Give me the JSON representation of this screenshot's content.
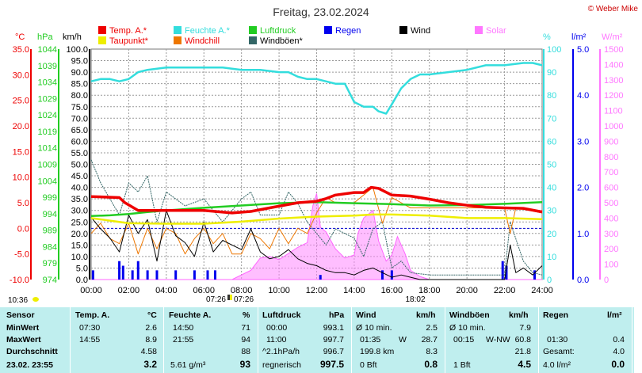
{
  "title": "Freitag, 23.02.2024",
  "copyright": "© Weber Mike",
  "legend": [
    {
      "label": "Temp. A.*",
      "color": "#ee0000"
    },
    {
      "label": "Feuchte A.*",
      "color": "#33dddd"
    },
    {
      "label": "Luftdruck",
      "color": "#22cc22"
    },
    {
      "label": "Regen",
      "color": "#0000ee"
    },
    {
      "label": "Wind",
      "color": "#000000"
    },
    {
      "label": "Solar",
      "color": "#ff77ff"
    },
    {
      "label": "Taupunkt*",
      "color": "#eeee00"
    },
    {
      "label": "Windchill",
      "color": "#ee7700"
    },
    {
      "label": "Windböen*",
      "color": "#336666"
    }
  ],
  "axis_units": {
    "temp": "°C",
    "hpa": "hPa",
    "kmh": "km/h",
    "pct": "%",
    "rain": "l/m²",
    "solar": "W/m²"
  },
  "sun_times": {
    "sunrise": "07:26",
    "sunset": "18:02",
    "now": "10:36"
  },
  "chart_data": {
    "type": "line",
    "x_unit": "hours",
    "xlim": [
      0,
      24
    ],
    "x_ticks": [
      "00:00",
      "02:00",
      "04:00",
      "06:00",
      "08:00",
      "10:00",
      "12:00",
      "14:00",
      "16:00",
      "18:00",
      "20:00",
      "22:00",
      "24:00"
    ],
    "axes": {
      "temp": {
        "range": [
          -10,
          35
        ],
        "ticks": [
          "35.0",
          "30.0",
          "25.0",
          "20.0",
          "15.0",
          "10.0",
          "5.0",
          "0.0",
          "-5.0",
          "-10.0"
        ]
      },
      "hpa": {
        "range": [
          974,
          1044
        ],
        "ticks": [
          "1044",
          "1039",
          "1034",
          "1029",
          "1024",
          "1019",
          "1014",
          "1009",
          "1004",
          "999",
          "994",
          "989",
          "984",
          "979",
          "974"
        ]
      },
      "kmh": {
        "range": [
          0,
          100
        ],
        "ticks": [
          "100.0",
          "95.0",
          "90.0",
          "85.0",
          "80.0",
          "75.0",
          "70.0",
          "65.0",
          "60.0",
          "55.0",
          "50.0",
          "45.0",
          "40.0",
          "35.0",
          "30.0",
          "25.0",
          "20.0",
          "15.0",
          "10.0",
          "5.0",
          "0.0"
        ]
      },
      "pct": {
        "range": [
          0,
          100
        ],
        "ticks": [
          "100",
          "90",
          "80",
          "70",
          "60",
          "50",
          "40",
          "30",
          "20",
          "10",
          "0"
        ]
      },
      "rain": {
        "range": [
          0,
          5
        ],
        "ticks": [
          "5.0",
          "4.0",
          "3.0",
          "2.0",
          "1.0",
          "0.0"
        ]
      },
      "solar": {
        "range": [
          0,
          1500
        ],
        "ticks": [
          "1500",
          "1400",
          "1300",
          "1200",
          "1100",
          "1000",
          "900",
          "800",
          "700",
          "600",
          "500",
          "400",
          "300",
          "200",
          "100",
          "0"
        ]
      }
    },
    "series": [
      {
        "name": "Temp. A.*",
        "axis": "temp",
        "x": [
          0,
          1.5,
          1.8,
          2.5,
          4,
          6,
          7.5,
          8.5,
          9.5,
          11,
          12,
          12.5,
          13,
          14,
          14.5,
          14.9,
          15.3,
          16,
          17,
          18,
          19,
          20,
          21,
          22,
          23,
          24
        ],
        "y": [
          6.2,
          6.0,
          5.0,
          3.5,
          3.5,
          3.5,
          3.0,
          3.3,
          4.0,
          5.0,
          5.3,
          5.8,
          6.5,
          7.0,
          7.0,
          8.0,
          7.8,
          6.5,
          6.3,
          5.7,
          5.0,
          4.5,
          4.1,
          4.0,
          3.9,
          3.2
        ]
      },
      {
        "name": "Feuchte A.*",
        "axis": "pct",
        "x": [
          0,
          0.5,
          1,
          1.5,
          2,
          2.5,
          3,
          4,
          5,
          6,
          7,
          8,
          9,
          10,
          10.5,
          11,
          11.5,
          12,
          13,
          13.5,
          14,
          14.5,
          15,
          15.3,
          15.7,
          16,
          16.5,
          17,
          17.5,
          18,
          19,
          20,
          21,
          22,
          23,
          23.5,
          24
        ],
        "y": [
          86,
          87,
          87,
          86,
          87,
          90,
          91,
          92,
          92,
          92,
          92,
          91,
          91,
          90,
          90,
          88,
          87,
          87,
          85,
          85,
          77,
          75,
          75,
          73,
          72,
          76,
          83,
          87,
          89,
          89,
          90,
          91,
          93,
          93,
          94,
          94,
          93
        ]
      },
      {
        "name": "Luftdruck",
        "axis": "hpa",
        "x": [
          0,
          1,
          2,
          3,
          4,
          6,
          8,
          10,
          12,
          14,
          16,
          18,
          20,
          22,
          24
        ],
        "y": [
          993.3,
          993.5,
          993.9,
          994.5,
          995.0,
          995.8,
          996.5,
          997.2,
          997.5,
          997.2,
          996.9,
          996.5,
          996.6,
          997.0,
          997.5
        ]
      },
      {
        "name": "Taupunkt*",
        "axis": "temp",
        "x": [
          0,
          2,
          4,
          6,
          8,
          10,
          12,
          14,
          15,
          16,
          18,
          20,
          22,
          24
        ],
        "y": [
          2.0,
          1.0,
          0.9,
          0.9,
          1.3,
          1.9,
          2.3,
          2.5,
          2.7,
          2.7,
          2.5,
          2.0,
          2.0,
          1.8
        ]
      },
      {
        "name": "Wind",
        "axis": "kmh",
        "x": [
          0,
          0.5,
          1,
          1.5,
          2,
          2.5,
          3,
          3.5,
          4,
          4.5,
          5,
          5.5,
          6,
          6.5,
          7,
          7.5,
          8,
          8.5,
          9,
          9.5,
          10,
          10.5,
          11,
          11.5,
          12,
          12.5,
          13,
          13.5,
          14,
          14.5,
          15,
          15.5,
          16,
          16.5,
          17,
          17.5,
          18,
          19,
          20,
          21,
          22,
          22.3,
          22.6,
          23,
          23.5,
          24
        ],
        "y": [
          27,
          22,
          18,
          12,
          28,
          20,
          26,
          8,
          30,
          19,
          16,
          10,
          25,
          12,
          17,
          15,
          13,
          22,
          12,
          9,
          10,
          13,
          9,
          7,
          6,
          4,
          3,
          3,
          2,
          4,
          5,
          3,
          1,
          2,
          1,
          0,
          0,
          0,
          0,
          0,
          0,
          15,
          3,
          5,
          2,
          6
        ]
      },
      {
        "name": "Windböen*",
        "axis": "kmh",
        "x": [
          0,
          0.5,
          1,
          1.5,
          2,
          2.5,
          3,
          3.5,
          4,
          5,
          6,
          7,
          8,
          8.5,
          9,
          10,
          10.5,
          11,
          11.5,
          12,
          12.5,
          13,
          14,
          14.5,
          15,
          15.5,
          16,
          16.5,
          17,
          18,
          19,
          20,
          21,
          22,
          22.3,
          23,
          23.5,
          24
        ],
        "y": [
          52,
          42,
          35,
          28,
          42,
          38,
          45,
          25,
          38,
          32,
          35,
          25,
          35,
          38,
          28,
          28,
          38,
          33,
          25,
          20,
          15,
          22,
          18,
          10,
          22,
          25,
          5,
          8,
          3,
          2,
          2,
          2,
          2,
          2,
          25,
          8,
          3,
          2
        ]
      },
      {
        "name": "Windchill",
        "axis": "temp",
        "x": [
          0,
          0.5,
          1,
          1.5,
          2,
          2.5,
          3,
          3.5,
          4,
          4.5,
          5,
          5.5,
          6,
          6.5,
          7,
          7.5,
          8,
          8.5,
          9,
          9.5,
          10,
          10.5,
          11,
          11.5,
          12,
          12.5,
          13,
          14,
          15,
          15.5,
          16,
          17,
          18,
          20,
          21.5,
          22,
          22.3,
          22.6,
          24
        ],
        "y": [
          -1,
          1,
          -2,
          -3,
          1,
          -5,
          0,
          -4,
          0,
          -1,
          -5,
          -2,
          0,
          -3,
          -1,
          -5,
          -5,
          -1,
          -2,
          -4,
          0,
          -3,
          0,
          -1,
          3,
          6,
          5,
          5,
          8,
          1,
          6,
          4,
          4,
          4,
          4,
          4,
          -1,
          4,
          3
        ]
      }
    ],
    "solar": {
      "x": [
        0,
        7.5,
        8.5,
        9,
        9.5,
        10,
        10.5,
        11,
        11.5,
        11.8,
        12,
        12.2,
        12.5,
        13,
        13.5,
        14,
        14.2,
        14.5,
        15,
        15.3,
        15.7,
        16,
        16.3,
        16.7,
        17,
        17.5,
        18,
        24
      ],
      "y": [
        0,
        0,
        60,
        140,
        150,
        130,
        170,
        210,
        240,
        480,
        560,
        340,
        310,
        200,
        140,
        160,
        300,
        400,
        450,
        250,
        120,
        160,
        280,
        170,
        60,
        20,
        0,
        0
      ]
    },
    "rain": {
      "x": [
        0.1,
        1.5,
        1.7,
        2.2,
        2.5,
        3.0,
        3.5,
        4.5,
        5.5,
        6.2,
        6.6,
        12.2,
        15.5,
        16,
        21.9,
        22.1,
        23.6
      ],
      "y": [
        0.2,
        0.4,
        0.3,
        0.2,
        0.4,
        0.2,
        0.2,
        0.2,
        0.2,
        0.2,
        0.2,
        0.1,
        0.2,
        0.2,
        0.4,
        0.3,
        0.2
      ]
    },
    "reference_lines": [
      {
        "axis": "temp",
        "y": 0
      }
    ]
  },
  "table": {
    "headers": [
      "Sensor",
      "Temp. A.",
      "°C",
      "Feuchte A.",
      "%",
      "Luftdruck",
      "hPa",
      "Wind",
      "km/h",
      "Windböen",
      "km/h",
      "Regen",
      "l/m²"
    ],
    "row_labels": [
      "MinWert",
      "MaxWert",
      "Durchschnitt",
      "23.02.  23:55"
    ],
    "temp": [
      [
        "07:30",
        "2.6"
      ],
      [
        "14:55",
        "8.9"
      ],
      [
        "",
        "4.58"
      ],
      [
        "",
        "3.2"
      ]
    ],
    "hum": [
      [
        "14:50",
        "71"
      ],
      [
        "21:55",
        "94"
      ],
      [
        "",
        "88"
      ],
      [
        "5.61 g/m³",
        "93"
      ]
    ],
    "press": [
      [
        "00:00",
        "993.1"
      ],
      [
        "11:00",
        "997.7"
      ],
      [
        "^2.1hPa/h",
        "996.7"
      ],
      [
        "regnerisch",
        "997.5"
      ]
    ],
    "wind": [
      [
        "Ø 10 min.",
        "",
        "2.5"
      ],
      [
        "01:35",
        "W",
        "28.7"
      ],
      [
        "199.8 km",
        "",
        "8.3"
      ],
      [
        "0 Bft",
        "",
        "0.8"
      ]
    ],
    "gust": [
      [
        "Ø 10 min.",
        "",
        "7.9"
      ],
      [
        "00:15",
        "W-NW",
        "60.8"
      ],
      [
        "",
        "",
        "21.8"
      ],
      [
        "1 Bft",
        "",
        "4.5"
      ]
    ],
    "rain": [
      [
        "",
        ""
      ],
      [
        "01:30",
        "0.4"
      ],
      [
        "Gesamt:",
        "4.0"
      ],
      [
        "4.0 l/m²",
        "0.0"
      ]
    ]
  }
}
